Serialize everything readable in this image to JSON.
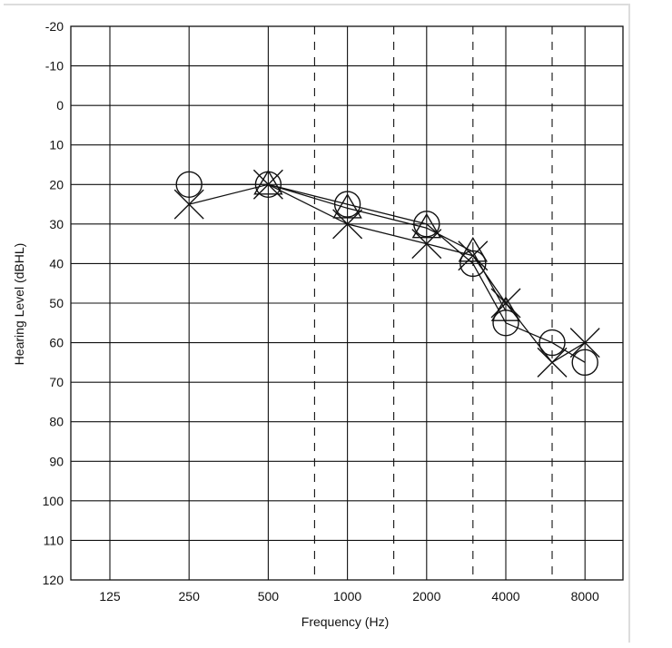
{
  "chart_data": {
    "type": "line",
    "title": "",
    "xlabel": "Frequency (Hz)",
    "ylabel": "Hearing Level (dBHL)",
    "x_ticks": [
      "125",
      "250",
      "500",
      "1000",
      "2000",
      "4000",
      "8000"
    ],
    "x_dashed": [
      750,
      1500,
      3000,
      6000
    ],
    "y_ticks": [
      -20,
      -10,
      0,
      10,
      20,
      30,
      40,
      50,
      60,
      70,
      80,
      90,
      100,
      110,
      120
    ],
    "ylim": [
      -20,
      120
    ],
    "y_inverted": true,
    "x_scale": "log2",
    "grid": true,
    "series": [
      {
        "marker": "circle",
        "x": [
          250,
          500,
          1000,
          2000,
          3000,
          4000,
          6000,
          8000
        ],
        "y": [
          20,
          20,
          25,
          30,
          40,
          55,
          60,
          65
        ]
      },
      {
        "marker": "cross",
        "x": [
          250,
          500,
          1000,
          2000,
          3000,
          4000,
          6000,
          8000
        ],
        "y": [
          25,
          20,
          30,
          35,
          38,
          50,
          65,
          60
        ]
      },
      {
        "marker": "triangle",
        "x": [
          500,
          1000,
          2000,
          3000,
          4000
        ],
        "y": [
          20,
          26,
          31,
          37,
          52
        ]
      }
    ]
  }
}
